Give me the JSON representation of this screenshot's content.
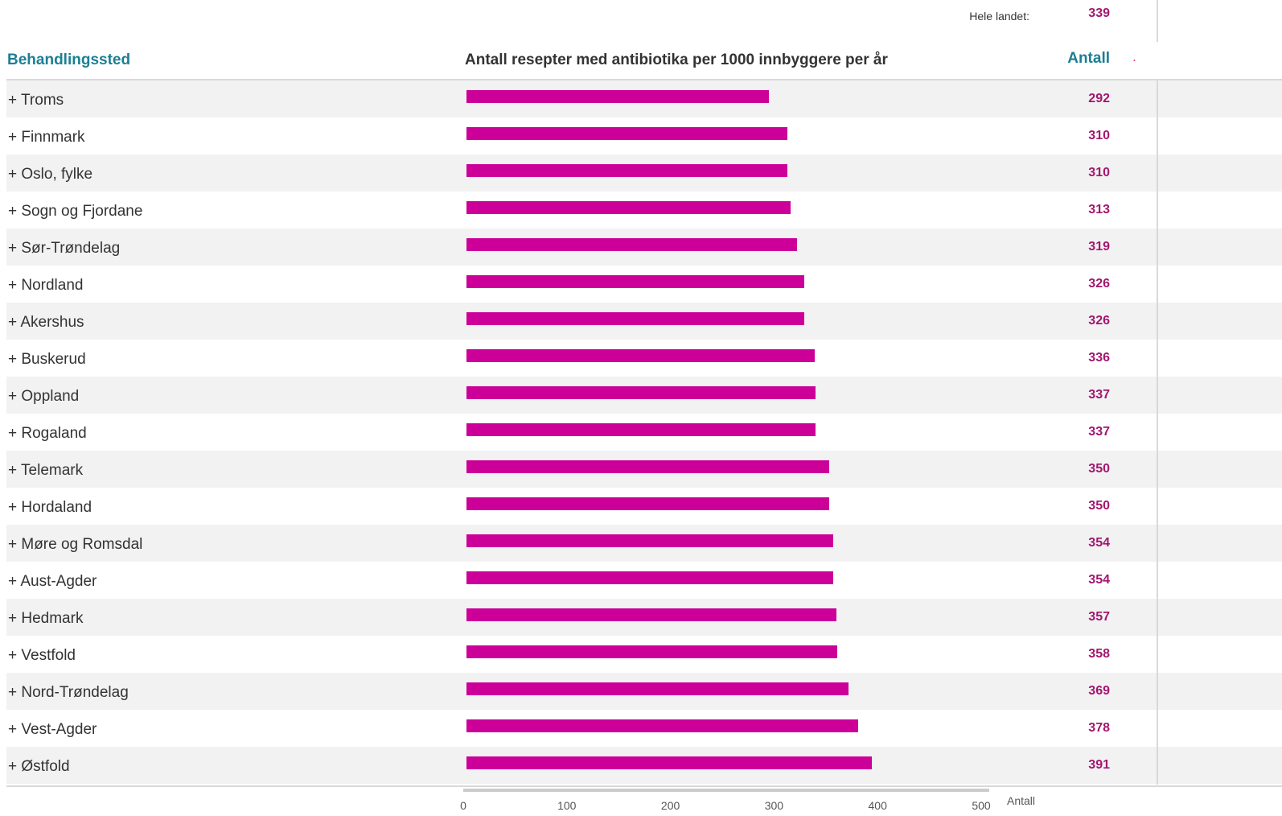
{
  "national": {
    "label": "Hele landet:",
    "value": "339"
  },
  "headers": {
    "place": "Behandlingssted",
    "chart": "Antall resepter med antibiotika per 1000 innbyggere per år",
    "count": "Antall",
    "dot": "."
  },
  "colors": {
    "bar": "#cc0099",
    "value": "#a3166f",
    "header": "#1b7f93"
  },
  "chart_data": {
    "type": "bar",
    "orientation": "horizontal",
    "categories": [
      "+ Troms",
      "+ Finnmark",
      "+ Oslo, fylke",
      "+ Sogn og Fjordane",
      "+ Sør-Trøndelag",
      "+ Nordland",
      "+ Akershus",
      "+ Buskerud",
      "+ Oppland",
      "+ Rogaland",
      "+ Telemark",
      "+ Hordaland",
      "+ Møre og Romsdal",
      "+ Aust-Agder",
      "+ Hedmark",
      "+ Vestfold",
      "+ Nord-Trøndelag",
      "+ Vest-Agder",
      "+ Østfold"
    ],
    "values": [
      292,
      310,
      310,
      313,
      319,
      326,
      326,
      336,
      337,
      337,
      350,
      350,
      354,
      354,
      357,
      358,
      369,
      378,
      391
    ],
    "xlabel": "Antall",
    "xlim": [
      0,
      520
    ],
    "xticks": [
      0,
      100,
      200,
      300,
      400,
      500
    ],
    "grid": false
  }
}
